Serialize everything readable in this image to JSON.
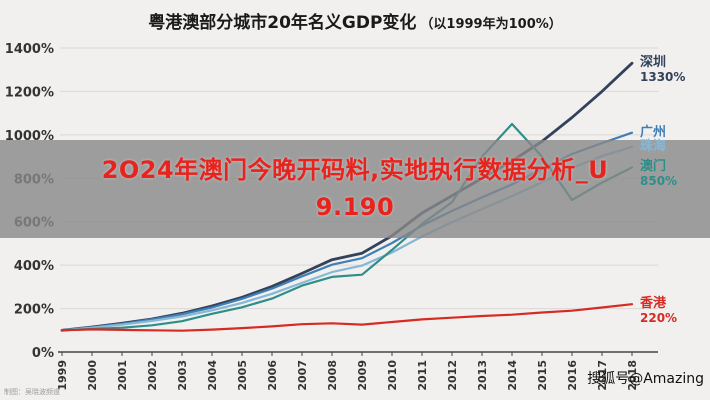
{
  "title": {
    "main": "粤港澳部分城市20年名义GDP变化",
    "sub": "（以1999年为100%）"
  },
  "overlay": {
    "line1": "2O24年澳门今晚开码料,实地执行数据分析_U",
    "line2": "9.190",
    "text_color": "#e8231d",
    "banner_color": "rgba(136,136,136,0.80)"
  },
  "watermarks": {
    "bottom_left": "制图：吴晓波频道",
    "bottom_right": "搜狐号@Amazing"
  },
  "chart_data": {
    "type": "line",
    "title": "粤港澳部分城市20年名义GDP变化（以1999年为100%）",
    "x": [
      "1999",
      "2000",
      "2001",
      "2002",
      "2003",
      "2004",
      "2005",
      "2006",
      "2007",
      "2008",
      "2009",
      "2010",
      "2011",
      "2012",
      "2013",
      "2014",
      "2015",
      "2016",
      "2017",
      "2018"
    ],
    "xlabel": "",
    "ylabel": "",
    "ylim": [
      0,
      1400
    ],
    "yticks": [
      0,
      200,
      400,
      600,
      800,
      1000,
      1200,
      1400
    ],
    "ytick_labels": [
      "0%",
      "200%",
      "400%",
      "600%",
      "800%",
      "1000%",
      "1200%",
      "1400%"
    ],
    "grid": true,
    "legend_position": "right-edge-labels",
    "colors": {
      "grid": "#d9d8d5",
      "axis": "#444444",
      "tick_text": "#333333"
    },
    "series": [
      {
        "name": "深圳",
        "color": "#33425b",
        "end_label": "1330%",
        "values": [
          100,
          115,
          132,
          152,
          178,
          212,
          252,
          302,
          362,
          425,
          455,
          535,
          640,
          720,
          800,
          880,
          970,
          1080,
          1200,
          1330
        ]
      },
      {
        "name": "广州",
        "color": "#3f7fb5",
        "end_label": "",
        "values": [
          100,
          114,
          130,
          150,
          174,
          205,
          245,
          292,
          348,
          402,
          432,
          502,
          582,
          650,
          712,
          772,
          842,
          912,
          962,
          1010
        ]
      },
      {
        "name": "珠海",
        "color": "#86b7d7",
        "end_label": "",
        "values": [
          100,
          112,
          126,
          143,
          164,
          192,
          226,
          268,
          318,
          368,
          398,
          458,
          532,
          598,
          658,
          718,
          782,
          848,
          902,
          945
        ]
      },
      {
        "name": "澳门",
        "color": "#2f8e8a",
        "end_label": "850%",
        "values": [
          100,
          106,
          112,
          123,
          142,
          176,
          206,
          246,
          306,
          346,
          356,
          470,
          590,
          690,
          900,
          1050,
          900,
          700,
          780,
          850
        ]
      },
      {
        "name": "香港",
        "color": "#d62b23",
        "end_label": "220%",
        "values": [
          100,
          104,
          102,
          100,
          98,
          103,
          110,
          118,
          128,
          132,
          126,
          138,
          150,
          158,
          166,
          172,
          182,
          190,
          205,
          220
        ]
      }
    ]
  }
}
